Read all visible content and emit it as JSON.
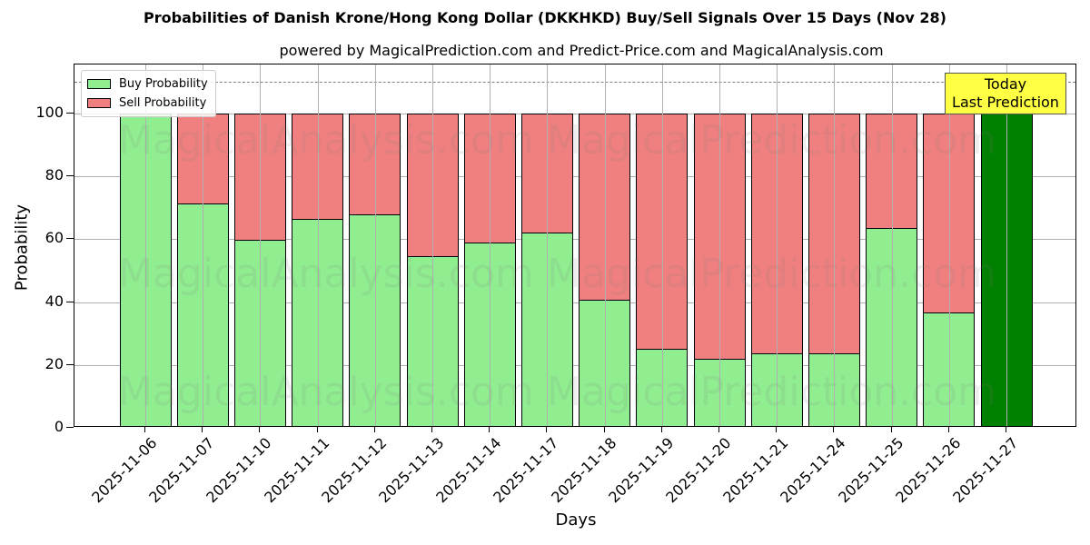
{
  "chart_data": {
    "type": "bar",
    "stacked": true,
    "title": "Probabilities of Danish Krone/Hong Kong Dollar (DKKHKD) Buy/Sell Signals Over 15 Days (Nov 28)",
    "subtitle": "powered by MagicalPrediction.com and Predict-Price.com and MagicalAnalysis.com",
    "xlabel": "Days",
    "ylabel": "Probability",
    "ylim": [
      0,
      115
    ],
    "yticks": [
      0,
      20,
      40,
      60,
      80,
      100
    ],
    "grid": true,
    "legend_position": "upper left",
    "reference_line": {
      "y": 110,
      "style": "dashed",
      "color": "#808080"
    },
    "categories": [
      "2025-11-06",
      "2025-11-07",
      "2025-11-10",
      "2025-11-11",
      "2025-11-12",
      "2025-11-13",
      "2025-11-14",
      "2025-11-17",
      "2025-11-18",
      "2025-11-19",
      "2025-11-20",
      "2025-11-21",
      "2025-11-24",
      "2025-11-25",
      "2025-11-26",
      "2025-11-27"
    ],
    "series": [
      {
        "name": "Buy Probability",
        "color": "#90ee90",
        "values": [
          100,
          71.4,
          59.8,
          66.5,
          67.9,
          54.6,
          59.0,
          62.1,
          40.8,
          25.1,
          22.0,
          23.7,
          23.7,
          63.6,
          36.7,
          100
        ]
      },
      {
        "name": "Sell Probability",
        "color": "#f08080",
        "values": [
          0,
          28.6,
          40.2,
          33.5,
          32.1,
          45.4,
          41.0,
          37.9,
          59.2,
          74.9,
          78.0,
          76.3,
          76.3,
          36.4,
          63.3,
          0
        ]
      }
    ],
    "highlight": {
      "category": "2025-11-27",
      "color": "#008000",
      "annotation": "Today\nLast Prediction",
      "annotation_bg": "#ffff44"
    }
  },
  "legend": {
    "buy_label": "Buy Probability",
    "sell_label": "Sell Probability"
  },
  "annotation": {
    "line1": "Today",
    "line2": "Last Prediction"
  },
  "watermarks": [
    "MagicalAnalysis.com",
    "MagicalPrediction.com"
  ]
}
